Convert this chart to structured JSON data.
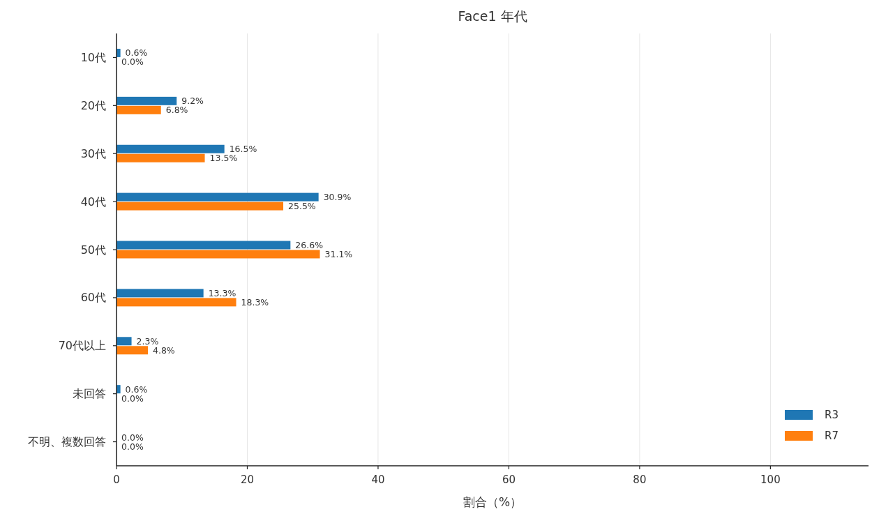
{
  "chart_data": {
    "type": "bar",
    "orientation": "horizontal",
    "title": "Face1 年代",
    "xlabel": "割合（%）",
    "categories": [
      "10代",
      "20代",
      "30代",
      "40代",
      "50代",
      "60代",
      "70代以上",
      "未回答",
      "不明、複数回答"
    ],
    "series": [
      {
        "name": "R3",
        "color": "#1f77b4",
        "values": [
          0.6,
          9.2,
          16.5,
          30.9,
          26.6,
          13.3,
          2.3,
          0.6,
          0.0
        ],
        "value_labels": [
          "0.6%",
          "9.2%",
          "16.5%",
          "30.9%",
          "26.6%",
          "13.3%",
          "2.3%",
          "0.6%",
          "0.0%"
        ]
      },
      {
        "name": "R7",
        "color": "#ff7f0e",
        "values": [
          0.0,
          6.8,
          13.5,
          25.5,
          31.1,
          18.3,
          4.8,
          0.0,
          0.0
        ],
        "value_labels": [
          "0.0%",
          "6.8%",
          "13.5%",
          "25.5%",
          "31.1%",
          "18.3%",
          "4.8%",
          "0.0%",
          "0.0%"
        ]
      }
    ],
    "xlim": [
      0,
      115
    ],
    "xticks": [
      0,
      20,
      40,
      60,
      80,
      100
    ],
    "grid": "x",
    "legend": "bottom right"
  }
}
